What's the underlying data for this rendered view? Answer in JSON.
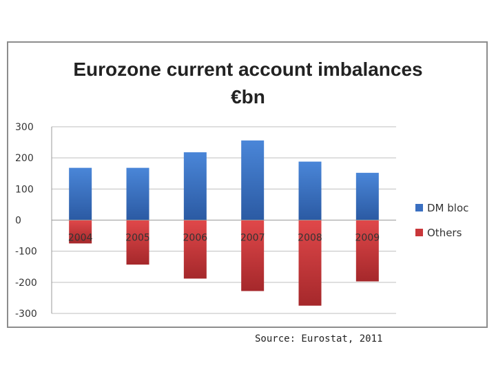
{
  "chart_data": {
    "type": "bar",
    "stacked": true,
    "title": [
      "Eurozone current account imbalances",
      "€bn"
    ],
    "categories": [
      "2004",
      "2005",
      "2006",
      "2007",
      "2008",
      "2009"
    ],
    "series": [
      {
        "name": "DM bloc",
        "values": [
          168,
          168,
          218,
          256,
          188,
          152
        ],
        "color": "#3a6fc1"
      },
      {
        "name": "Others",
        "values": [
          -75,
          -143,
          -188,
          -228,
          -275,
          -197
        ],
        "color": "#c9373a"
      }
    ],
    "ylim": [
      -300,
      300
    ],
    "yticks": [
      300,
      200,
      100,
      0,
      -100,
      -200,
      -300
    ],
    "grid": true,
    "legend": "right"
  },
  "source": "Source: Eurostat, 2011"
}
